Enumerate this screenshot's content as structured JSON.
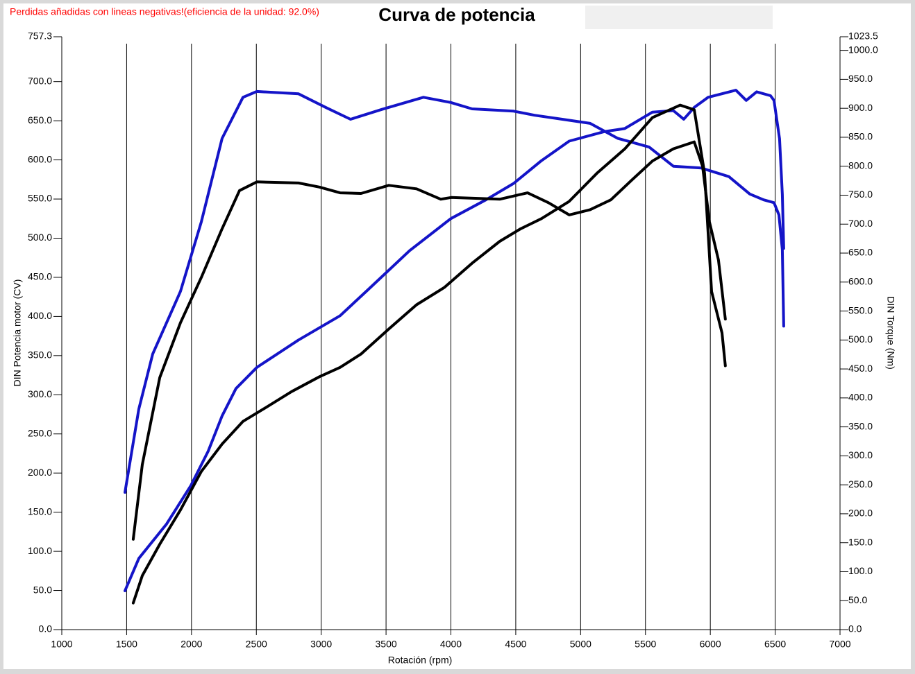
{
  "chart_data": {
    "type": "line",
    "annotation": "Perdidas añadidas con lineas negativas!(eficiencia de la unidad: 92.0%)",
    "title": "Curva de potencia",
    "x_label": "Rotación (rpm)",
    "y_label": "DIN Potencia motor (CV)",
    "y2_label": "DIN Torque (Nm)",
    "xlim": [
      1000,
      7000
    ],
    "xticks": [
      1000,
      1500,
      2000,
      2500,
      3000,
      3500,
      4000,
      4500,
      5000,
      5500,
      6000,
      6500,
      7000
    ],
    "ylim": [
      0,
      757.3
    ],
    "yticks": [
      {
        "value": 0,
        "label": "0.0"
      },
      {
        "value": 50,
        "label": "50.0"
      },
      {
        "value": 100,
        "label": "100.0"
      },
      {
        "value": 150,
        "label": "150.0"
      },
      {
        "value": 200,
        "label": "200.0"
      },
      {
        "value": 250,
        "label": "250.0"
      },
      {
        "value": 300,
        "label": "300.0"
      },
      {
        "value": 350,
        "label": "350.0"
      },
      {
        "value": 400,
        "label": "400.0"
      },
      {
        "value": 450,
        "label": "450.0"
      },
      {
        "value": 500,
        "label": "500.0"
      },
      {
        "value": 550,
        "label": "550.0"
      },
      {
        "value": 600,
        "label": "600.0"
      },
      {
        "value": 650,
        "label": "650.0"
      },
      {
        "value": 700,
        "label": "700.0"
      },
      757.3
    ],
    "y2lim": [
      0,
      1023.5
    ],
    "y2ticks": [
      {
        "value": 0,
        "label": "0.0"
      },
      {
        "value": 50,
        "label": "50.0"
      },
      {
        "value": 100,
        "label": "100.0"
      },
      {
        "value": 150,
        "label": "150.0"
      },
      {
        "value": 200,
        "label": "200.0"
      },
      {
        "value": 250,
        "label": "250.0"
      },
      {
        "value": 300,
        "label": "300.0"
      },
      {
        "value": 350,
        "label": "350.0"
      },
      {
        "value": 400,
        "label": "400.0"
      },
      {
        "value": 450,
        "label": "450.0"
      },
      {
        "value": 500,
        "label": "500.0"
      },
      {
        "value": 550,
        "label": "550.0"
      },
      {
        "value": 600,
        "label": "600.0"
      },
      {
        "value": 650,
        "label": "650.0"
      },
      {
        "value": 700,
        "label": "700.0"
      },
      {
        "value": 750,
        "label": "750.0"
      },
      {
        "value": 800,
        "label": "800.0"
      },
      {
        "value": 850,
        "label": "850.0"
      },
      {
        "value": 900,
        "label": "900.0"
      },
      {
        "value": 950,
        "label": "950.0"
      },
      {
        "value": 1000,
        "label": "1000.0"
      },
      1023.5
    ],
    "grid": "x",
    "series": [
      {
        "color": "#1414c8",
        "axis": "y2",
        "x": [
          1487,
          1594,
          1701,
          1915,
          2076,
          2236,
          2397,
          2504,
          2825,
          3039,
          3226,
          3467,
          3788,
          3999,
          4163,
          4484,
          4645,
          4859,
          5073,
          5287,
          5528,
          5715,
          5929,
          6143,
          6304,
          6411,
          6491,
          6529,
          6555,
          6566
        ],
        "values": [
          237,
          381,
          476,
          584,
          704,
          848,
          919,
          929,
          925,
          901,
          881,
          898,
          919,
          910,
          899,
          895,
          888,
          881,
          874,
          848,
          833,
          800,
          797,
          782,
          752,
          742,
          737,
          716,
          656,
          524
        ]
      },
      {
        "color": "#1414c8",
        "axis": "y",
        "x": [
          1487,
          1594,
          1808,
          1995,
          2129,
          2236,
          2343,
          2504,
          2825,
          3146,
          3360,
          3681,
          3999,
          4270,
          4484,
          4698,
          4912,
          5180,
          5340,
          5554,
          5715,
          5795,
          5876,
          5983,
          6197,
          6277,
          6357,
          6464,
          6491,
          6534,
          6555,
          6566
        ],
        "values": [
          49.6,
          91,
          135,
          184,
          228,
          273,
          308,
          335,
          370,
          401,
          434,
          484,
          525,
          549,
          570,
          599,
          624,
          636,
          640,
          661,
          663,
          652,
          667,
          680,
          689,
          676,
          687,
          682,
          676,
          627,
          556,
          487
        ]
      },
      {
        "color": "#000000",
        "axis": "y2",
        "x": [
          1551,
          1621,
          1755,
          1915,
          2076,
          2236,
          2370,
          2504,
          2825,
          2986,
          3146,
          3307,
          3521,
          3735,
          3922,
          4002,
          4377,
          4591,
          4752,
          4912,
          5073,
          5233,
          5394,
          5554,
          5715,
          5876,
          5940,
          5993,
          6063,
          6116
        ],
        "values": [
          156,
          285,
          435,
          530,
          608,
          692,
          758,
          773,
          771,
          764,
          754,
          753,
          767,
          761,
          743,
          746,
          743,
          754,
          737,
          716,
          725,
          742,
          776,
          809,
          830,
          842,
          800,
          704,
          638,
          536
        ]
      },
      {
        "color": "#000000",
        "axis": "y",
        "x": [
          1551,
          1621,
          1755,
          1915,
          2076,
          2236,
          2397,
          2557,
          2771,
          2986,
          3146,
          3307,
          3521,
          3735,
          3949,
          4163,
          4377,
          4538,
          4698,
          4912,
          5126,
          5340,
          5554,
          5768,
          5876,
          5956,
          6010,
          6090,
          6116
        ],
        "values": [
          34,
          69,
          109,
          153,
          202,
          237,
          266,
          282,
          304,
          323,
          335,
          352,
          384,
          415,
          437,
          468,
          496,
          512,
          525,
          547,
          583,
          614,
          654,
          670,
          664,
          583,
          432,
          379,
          337
        ]
      }
    ]
  }
}
